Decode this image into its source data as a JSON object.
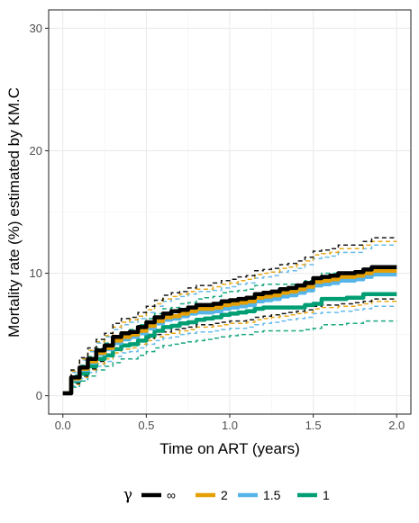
{
  "chart_data": {
    "type": "line",
    "xlabel": "Time on ART (years)",
    "ylabel": "Mortality rate (%) estimated by KM.C",
    "xlim": [
      0,
      2
    ],
    "ylim": [
      0,
      30
    ],
    "x_ticks": [
      0.0,
      0.5,
      1.0,
      1.5,
      2.0
    ],
    "x_tick_labels": [
      "0.0",
      "0.5",
      "1.0",
      "1.5",
      "2.0"
    ],
    "y_ticks": [
      0,
      10,
      20,
      30
    ],
    "y_tick_labels": [
      "0",
      "10",
      "20",
      "30"
    ],
    "grid": true,
    "legend": {
      "title": "γ",
      "position": "bottom",
      "entries": [
        "∞",
        "2",
        "1.5",
        "1"
      ]
    },
    "x": [
      0,
      0.05,
      0.1,
      0.15,
      0.2,
      0.25,
      0.3,
      0.35,
      0.4,
      0.45,
      0.5,
      0.55,
      0.6,
      0.65,
      0.7,
      0.75,
      0.8,
      0.85,
      0.9,
      0.95,
      1.0,
      1.05,
      1.1,
      1.15,
      1.2,
      1.25,
      1.3,
      1.35,
      1.4,
      1.45,
      1.5,
      1.55,
      1.6,
      1.65,
      1.7,
      1.75,
      1.8,
      1.85,
      1.9,
      1.95,
      2.0
    ],
    "series": [
      {
        "name": "∞",
        "color": "#000000",
        "values": [
          0.2,
          1.5,
          2.3,
          3.0,
          3.7,
          4.1,
          4.8,
          5.1,
          5.2,
          5.6,
          6.0,
          6.4,
          6.7,
          6.9,
          7.0,
          7.2,
          7.4,
          7.4,
          7.5,
          7.7,
          7.8,
          7.9,
          8.0,
          8.3,
          8.4,
          8.5,
          8.7,
          8.8,
          9.0,
          9.2,
          9.6,
          9.7,
          9.8,
          10.0,
          10.0,
          10.1,
          10.3,
          10.5,
          10.5,
          10.5,
          10.5
        ],
        "lower": [
          0.2,
          1.0,
          1.6,
          2.2,
          2.8,
          3.2,
          3.7,
          4.0,
          4.1,
          4.4,
          4.7,
          5.0,
          5.2,
          5.4,
          5.5,
          5.6,
          5.8,
          5.8,
          5.9,
          6.0,
          6.1,
          6.1,
          6.2,
          6.4,
          6.5,
          6.6,
          6.7,
          6.8,
          6.9,
          7.0,
          7.3,
          7.4,
          7.4,
          7.5,
          7.5,
          7.6,
          7.7,
          7.9,
          7.9,
          7.9,
          7.9
        ],
        "upper": [
          0.2,
          2.1,
          3.1,
          3.9,
          4.6,
          5.1,
          5.9,
          6.3,
          6.4,
          6.8,
          7.3,
          7.8,
          8.2,
          8.4,
          8.5,
          8.8,
          9.0,
          9.0,
          9.2,
          9.4,
          9.5,
          9.7,
          9.8,
          10.2,
          10.3,
          10.4,
          10.7,
          10.8,
          11.0,
          11.3,
          11.8,
          11.9,
          12.0,
          12.3,
          12.3,
          12.3,
          12.6,
          12.9,
          12.9,
          12.9,
          12.9
        ]
      },
      {
        "name": "2",
        "color": "#E69F00",
        "values": [
          0.2,
          1.4,
          2.2,
          2.8,
          3.5,
          3.9,
          4.5,
          4.8,
          5.0,
          5.3,
          5.7,
          6.1,
          6.4,
          6.5,
          6.7,
          6.9,
          7.1,
          7.1,
          7.2,
          7.4,
          7.5,
          7.6,
          7.7,
          8.0,
          8.1,
          8.2,
          8.4,
          8.5,
          8.7,
          8.9,
          9.3,
          9.4,
          9.5,
          9.7,
          9.7,
          9.8,
          10.0,
          10.2,
          10.2,
          10.2,
          10.2
        ],
        "lower": [
          0.2,
          0.9,
          1.5,
          2.1,
          2.6,
          3.0,
          3.5,
          3.8,
          3.9,
          4.2,
          4.5,
          4.8,
          5.0,
          5.1,
          5.3,
          5.4,
          5.6,
          5.6,
          5.7,
          5.8,
          5.9,
          5.9,
          6.0,
          6.2,
          6.3,
          6.4,
          6.5,
          6.6,
          6.7,
          6.8,
          7.1,
          7.2,
          7.2,
          7.3,
          7.3,
          7.4,
          7.5,
          7.7,
          7.7,
          7.7,
          7.7
        ],
        "upper": [
          0.2,
          2.0,
          3.0,
          3.7,
          4.4,
          4.9,
          5.6,
          6.0,
          6.2,
          6.5,
          7.0,
          7.5,
          7.9,
          8.1,
          8.3,
          8.5,
          8.7,
          8.7,
          8.9,
          9.1,
          9.2,
          9.4,
          9.5,
          9.9,
          10.0,
          10.1,
          10.4,
          10.5,
          10.7,
          11.0,
          11.5,
          11.6,
          11.7,
          12.0,
          12.0,
          12.0,
          12.3,
          12.6,
          12.6,
          12.6,
          12.6
        ]
      },
      {
        "name": "1.5",
        "color": "#56B4E9",
        "values": [
          0.2,
          1.3,
          2.1,
          2.7,
          3.4,
          3.8,
          4.3,
          4.6,
          4.8,
          5.1,
          5.5,
          5.9,
          6.2,
          6.3,
          6.5,
          6.7,
          6.8,
          6.8,
          6.9,
          7.1,
          7.2,
          7.3,
          7.4,
          7.7,
          7.8,
          7.9,
          8.1,
          8.2,
          8.4,
          8.6,
          9.0,
          9.1,
          9.2,
          9.4,
          9.4,
          9.5,
          9.7,
          9.9,
          9.9,
          9.9,
          9.9
        ],
        "lower": [
          0.2,
          0.8,
          1.4,
          1.9,
          2.4,
          2.8,
          3.2,
          3.5,
          3.6,
          3.9,
          4.2,
          4.5,
          4.7,
          4.8,
          5.0,
          5.1,
          5.2,
          5.2,
          5.3,
          5.4,
          5.5,
          5.5,
          5.6,
          5.8,
          5.9,
          6.0,
          6.1,
          6.2,
          6.3,
          6.4,
          6.7,
          6.8,
          6.8,
          6.9,
          6.9,
          7.0,
          7.1,
          7.3,
          7.3,
          7.3,
          7.3
        ],
        "upper": [
          0.2,
          1.9,
          2.9,
          3.6,
          4.3,
          4.8,
          5.4,
          5.8,
          6.0,
          6.3,
          6.8,
          7.3,
          7.7,
          7.9,
          8.1,
          8.3,
          8.5,
          8.5,
          8.6,
          8.8,
          8.9,
          9.1,
          9.2,
          9.6,
          9.7,
          9.8,
          10.1,
          10.2,
          10.4,
          10.7,
          11.2,
          11.3,
          11.4,
          11.7,
          11.7,
          11.7,
          12.0,
          12.3,
          12.3,
          12.3,
          12.3
        ]
      },
      {
        "name": "1",
        "color": "#009E73",
        "values": [
          0.2,
          1.2,
          1.8,
          2.4,
          3.0,
          3.3,
          3.8,
          4.1,
          4.2,
          4.5,
          4.9,
          5.3,
          5.6,
          5.7,
          5.9,
          6.0,
          6.2,
          6.3,
          6.4,
          6.6,
          6.7,
          6.8,
          6.9,
          7.1,
          7.2,
          7.2,
          7.2,
          7.2,
          7.2,
          7.4,
          7.5,
          7.9,
          7.9,
          7.9,
          8.0,
          8.0,
          8.3,
          8.3,
          8.3,
          8.3,
          8.3
        ],
        "lower": [
          0.2,
          0.7,
          1.2,
          1.6,
          2.1,
          2.4,
          2.7,
          3.0,
          3.0,
          3.3,
          3.6,
          3.9,
          4.1,
          4.2,
          4.3,
          4.4,
          4.5,
          4.6,
          4.7,
          4.8,
          4.9,
          5.0,
          5.0,
          5.2,
          5.3,
          5.3,
          5.3,
          5.3,
          5.3,
          5.4,
          5.5,
          5.8,
          5.8,
          5.8,
          5.9,
          5.9,
          6.1,
          6.1,
          6.1,
          6.1,
          6.1
        ],
        "upper": [
          0.2,
          1.7,
          2.5,
          3.2,
          3.9,
          4.3,
          4.9,
          5.2,
          5.4,
          5.8,
          6.3,
          6.7,
          7.1,
          7.2,
          7.5,
          7.6,
          7.9,
          8.0,
          8.1,
          8.4,
          8.5,
          8.6,
          8.7,
          9.0,
          9.1,
          9.1,
          9.1,
          9.1,
          9.1,
          9.4,
          9.5,
          10.0,
          10.0,
          10.0,
          10.1,
          10.1,
          10.4,
          10.4,
          10.4,
          10.4,
          10.4
        ]
      }
    ]
  }
}
